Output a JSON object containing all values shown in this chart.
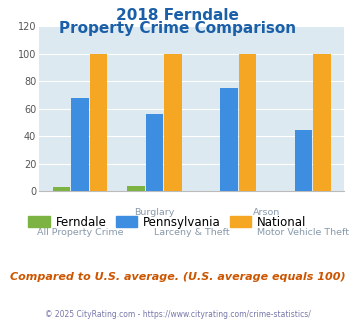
{
  "title_line1": "2018 Ferndale",
  "title_line2": "Property Crime Comparison",
  "groups": [
    "Ferndale",
    "Pennsylvania",
    "National"
  ],
  "bar_data": [
    [
      3,
      68,
      100
    ],
    [
      4,
      56,
      100
    ],
    [
      0,
      75,
      100
    ],
    [
      0,
      45,
      100
    ]
  ],
  "colors": {
    "Ferndale": "#7cb342",
    "Pennsylvania": "#3d8de0",
    "National": "#f5a623"
  },
  "ylim": [
    0,
    120
  ],
  "yticks": [
    0,
    20,
    40,
    60,
    80,
    100,
    120
  ],
  "plot_bg": "#dce9f0",
  "title_color": "#1a5fa8",
  "x_label_color": "#8899aa",
  "footer_text": "Compared to U.S. average. (U.S. average equals 100)",
  "copyright_text": "© 2025 CityRating.com - https://www.cityrating.com/crime-statistics/",
  "footer_color": "#cc5500",
  "copyright_color": "#7777aa"
}
